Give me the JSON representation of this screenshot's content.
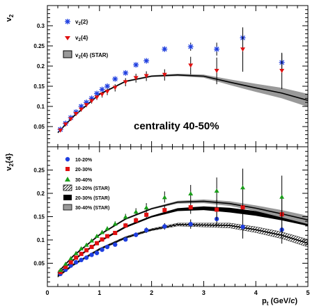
{
  "chart_data": [
    {
      "type": "scatter",
      "ylabel": "v",
      "ylabel_sub": "2",
      "xlim": [
        0,
        5
      ],
      "ylim": [
        0,
        0.35
      ],
      "yticks": [
        "0.05",
        "0.1",
        "0.15",
        "0.2",
        "0.25",
        "0.3"
      ],
      "annotation": "centrality 40-50%",
      "legend": {
        "placement": "top-left",
        "entries": [
          {
            "pre": "v",
            "sub": "2",
            "post": "{2}",
            "color": "#1f3fe0",
            "marker": "star"
          },
          {
            "pre": "v",
            "sub": "2",
            "post": "{4}",
            "color": "#e01010",
            "marker": "triangle-down"
          },
          {
            "pre": "v",
            "sub": "2",
            "post": "{4} (STAR)",
            "color": "#999999",
            "marker": "band"
          }
        ]
      },
      "series": [
        {
          "name": "v2{2}",
          "color": "#1f3fe0",
          "marker": "star",
          "points": [
            [
              0.25,
              0.043
            ],
            [
              0.35,
              0.058
            ],
            [
              0.45,
              0.072
            ],
            [
              0.55,
              0.086
            ],
            [
              0.65,
              0.1
            ],
            [
              0.75,
              0.11
            ],
            [
              0.85,
              0.12
            ],
            [
              0.95,
              0.132
            ],
            [
              1.05,
              0.142
            ],
            [
              1.15,
              0.15
            ],
            [
              1.3,
              0.168
            ],
            [
              1.5,
              0.183
            ],
            [
              1.7,
              0.203
            ],
            [
              1.9,
              0.213
            ],
            [
              2.25,
              0.242
            ],
            [
              2.75,
              0.248
            ],
            [
              3.25,
              0.242
            ],
            [
              3.75,
              0.27
            ],
            [
              4.5,
              0.209
            ]
          ],
          "errors": [
            0.002,
            0.002,
            0.002,
            0.002,
            0.002,
            0.002,
            0.002,
            0.002,
            0.002,
            0.002,
            0.003,
            0.003,
            0.004,
            0.005,
            0.006,
            0.01,
            0.016,
            0.016,
            0.022
          ]
        },
        {
          "name": "v2{4}",
          "color": "#e01010",
          "marker": "triangle-down",
          "points": [
            [
              0.25,
              0.04
            ],
            [
              0.35,
              0.055
            ],
            [
              0.45,
              0.068
            ],
            [
              0.55,
              0.081
            ],
            [
              0.65,
              0.092
            ],
            [
              0.75,
              0.103
            ],
            [
              0.85,
              0.113
            ],
            [
              0.95,
              0.122
            ],
            [
              1.05,
              0.129
            ],
            [
              1.15,
              0.136
            ],
            [
              1.3,
              0.146
            ],
            [
              1.5,
              0.16
            ],
            [
              1.7,
              0.17
            ],
            [
              1.9,
              0.175
            ],
            [
              2.25,
              0.178
            ],
            [
              2.75,
              0.201
            ],
            [
              3.25,
              0.188
            ],
            [
              3.75,
              0.241
            ],
            [
              4.5,
              0.188
            ]
          ],
          "errors": [
            0.004,
            0.004,
            0.004,
            0.004,
            0.005,
            0.005,
            0.006,
            0.006,
            0.007,
            0.008,
            0.009,
            0.01,
            0.011,
            0.012,
            0.014,
            0.022,
            0.033,
            0.055,
            0.045
          ]
        },
        {
          "name": "v2{4} (STAR)",
          "type": "band",
          "color": "#999999",
          "x": [
            0.2,
            0.5,
            1.0,
            1.5,
            2.0,
            2.5,
            3.0,
            3.5,
            4.0,
            4.5,
            5.0
          ],
          "y": [
            0.035,
            0.075,
            0.13,
            0.162,
            0.175,
            0.178,
            0.175,
            0.16,
            0.146,
            0.133,
            0.115
          ],
          "half_width": [
            0.002,
            0.002,
            0.002,
            0.002,
            0.002,
            0.003,
            0.004,
            0.007,
            0.01,
            0.013,
            0.016
          ]
        }
      ]
    },
    {
      "type": "scatter",
      "ylabel": "v",
      "ylabel_sub": "2",
      "ylabel_post": "{4}",
      "xlabel": "p",
      "xlabel_sub": "t",
      "xlabel_post": " (GeV/",
      "xlabel_italic": "c",
      "xlabel_close": ")",
      "xlim": [
        0,
        5
      ],
      "ylim": [
        0,
        0.3
      ],
      "xticks": [
        "0",
        "1",
        "2",
        "3",
        "4",
        "5"
      ],
      "yticks": [
        "0.05",
        "0.1",
        "0.15",
        "0.2",
        "0.25"
      ],
      "legend": {
        "placement": "top-left",
        "entries": [
          {
            "label": "10-20%",
            "color": "#1f3fe0",
            "marker": "circle"
          },
          {
            "label": "20-30%",
            "color": "#e01010",
            "marker": "square"
          },
          {
            "label": "30-40%",
            "color": "#1a9e1a",
            "marker": "triangle-up"
          },
          {
            "label": "10-20% (STAR)",
            "color": "#000000",
            "marker": "hatch"
          },
          {
            "label": "20-30% (STAR)",
            "color": "#000000",
            "marker": "band-black"
          },
          {
            "label": "30-40% (STAR)",
            "color": "#999999",
            "marker": "band"
          }
        ]
      },
      "series": [
        {
          "name": "10-20%",
          "color": "#1f3fe0",
          "marker": "circle",
          "points": [
            [
              0.25,
              0.027
            ],
            [
              0.35,
              0.036
            ],
            [
              0.45,
              0.045
            ],
            [
              0.55,
              0.052
            ],
            [
              0.65,
              0.057
            ],
            [
              0.75,
              0.062
            ],
            [
              0.85,
              0.068
            ],
            [
              0.95,
              0.072
            ],
            [
              1.05,
              0.079
            ],
            [
              1.15,
              0.085
            ],
            [
              1.3,
              0.09
            ],
            [
              1.5,
              0.101
            ],
            [
              1.7,
              0.111
            ],
            [
              1.9,
              0.121
            ],
            [
              2.25,
              0.129
            ],
            [
              2.75,
              0.134
            ],
            [
              3.25,
              0.145
            ],
            [
              3.75,
              0.128
            ],
            [
              4.5,
              0.122
            ]
          ],
          "errors": [
            0.002,
            0.002,
            0.002,
            0.002,
            0.002,
            0.002,
            0.002,
            0.002,
            0.003,
            0.003,
            0.003,
            0.004,
            0.005,
            0.006,
            0.007,
            0.01,
            0.016,
            0.025,
            0.03
          ]
        },
        {
          "name": "20-30%",
          "color": "#e01010",
          "marker": "square",
          "points": [
            [
              0.25,
              0.031
            ],
            [
              0.35,
              0.042
            ],
            [
              0.45,
              0.052
            ],
            [
              0.55,
              0.062
            ],
            [
              0.65,
              0.07
            ],
            [
              0.75,
              0.078
            ],
            [
              0.85,
              0.085
            ],
            [
              0.95,
              0.093
            ],
            [
              1.05,
              0.101
            ],
            [
              1.15,
              0.108
            ],
            [
              1.3,
              0.115
            ],
            [
              1.5,
              0.131
            ],
            [
              1.7,
              0.142
            ],
            [
              1.9,
              0.154
            ],
            [
              2.25,
              0.164
            ],
            [
              2.75,
              0.17
            ],
            [
              3.25,
              0.165
            ],
            [
              3.75,
              0.17
            ],
            [
              4.5,
              0.155
            ]
          ],
          "errors": [
            0.002,
            0.002,
            0.002,
            0.002,
            0.002,
            0.003,
            0.003,
            0.003,
            0.003,
            0.004,
            0.004,
            0.005,
            0.006,
            0.007,
            0.009,
            0.014,
            0.022,
            0.03,
            0.04
          ]
        },
        {
          "name": "30-40%",
          "color": "#1a9e1a",
          "marker": "triangle-up",
          "points": [
            [
              0.25,
              0.036
            ],
            [
              0.35,
              0.049
            ],
            [
              0.45,
              0.061
            ],
            [
              0.55,
              0.072
            ],
            [
              0.65,
              0.082
            ],
            [
              0.75,
              0.09
            ],
            [
              0.85,
              0.099
            ],
            [
              0.95,
              0.109
            ],
            [
              1.05,
              0.117
            ],
            [
              1.15,
              0.125
            ],
            [
              1.3,
              0.135
            ],
            [
              1.5,
              0.15
            ],
            [
              1.7,
              0.161
            ],
            [
              1.9,
              0.17
            ],
            [
              2.25,
              0.192
            ],
            [
              2.75,
              0.2
            ],
            [
              3.25,
              0.206
            ],
            [
              3.75,
              0.213
            ],
            [
              4.5,
              0.193
            ]
          ],
          "errors": [
            0.002,
            0.002,
            0.002,
            0.002,
            0.003,
            0.003,
            0.003,
            0.003,
            0.004,
            0.004,
            0.005,
            0.006,
            0.007,
            0.009,
            0.012,
            0.018,
            0.028,
            0.04,
            0.045
          ]
        },
        {
          "name": "10-20% (STAR)",
          "type": "band",
          "color": "#000000",
          "fill": "hatch",
          "x": [
            0.2,
            0.5,
            1.0,
            1.5,
            2.0,
            2.5,
            3.0,
            3.5,
            4.0,
            4.5,
            5.0
          ],
          "y": [
            0.022,
            0.047,
            0.08,
            0.105,
            0.122,
            0.133,
            0.132,
            0.131,
            0.122,
            0.11,
            0.093
          ],
          "half_width": [
            0.002,
            0.002,
            0.002,
            0.002,
            0.002,
            0.003,
            0.004,
            0.005,
            0.006,
            0.007,
            0.008
          ]
        },
        {
          "name": "20-30% (STAR)",
          "type": "band",
          "color": "#000000",
          "x": [
            0.2,
            0.5,
            1.0,
            1.5,
            2.0,
            2.5,
            3.0,
            3.5,
            4.0,
            4.5,
            5.0
          ],
          "y": [
            0.026,
            0.057,
            0.097,
            0.128,
            0.15,
            0.165,
            0.168,
            0.164,
            0.157,
            0.148,
            0.137
          ],
          "half_width": [
            0.002,
            0.002,
            0.002,
            0.002,
            0.002,
            0.003,
            0.004,
            0.005,
            0.005,
            0.006,
            0.007
          ]
        },
        {
          "name": "30-40% (STAR)",
          "type": "band",
          "color": "#999999",
          "x": [
            0.2,
            0.5,
            1.0,
            1.5,
            2.0,
            2.5,
            3.0,
            3.5,
            4.0,
            4.5,
            5.0
          ],
          "y": [
            0.03,
            0.066,
            0.111,
            0.145,
            0.167,
            0.181,
            0.183,
            0.178,
            0.168,
            0.156,
            0.143
          ],
          "half_width": [
            0.002,
            0.002,
            0.002,
            0.002,
            0.002,
            0.003,
            0.004,
            0.005,
            0.006,
            0.008,
            0.009
          ]
        }
      ]
    }
  ]
}
